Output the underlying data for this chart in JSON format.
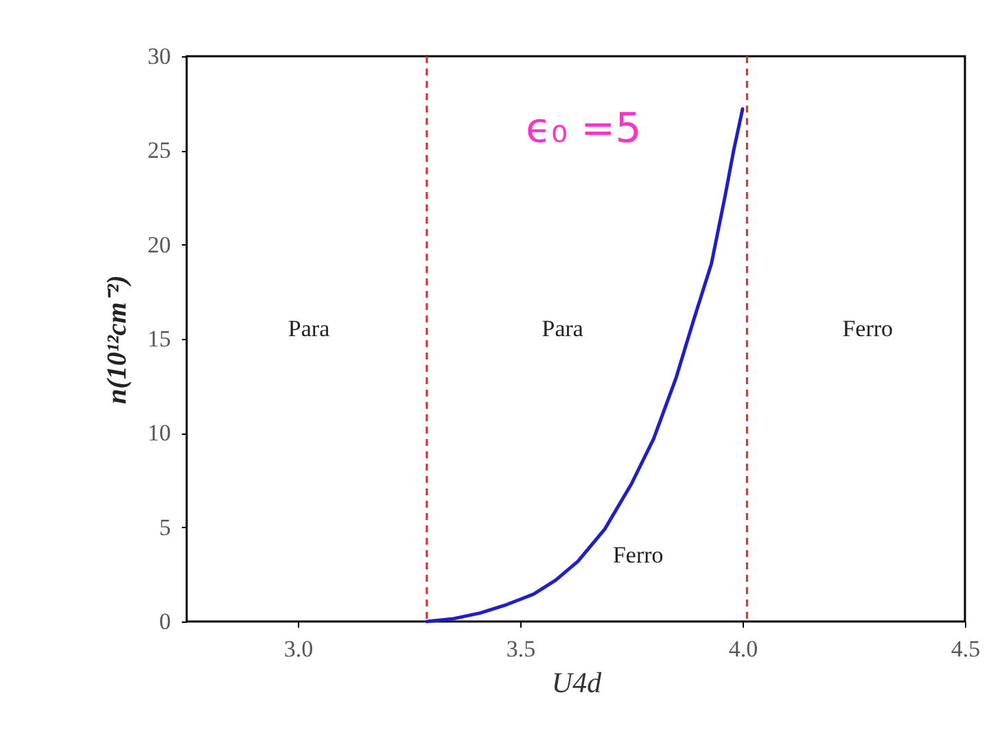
{
  "chart_data": {
    "type": "line",
    "xlabel": "U4d",
    "ylabel": "n(10¹²cm⁻²)",
    "x": [
      3.29,
      3.35,
      3.41,
      3.47,
      3.53,
      3.58,
      3.63,
      3.69,
      3.75,
      3.8,
      3.85,
      3.89,
      3.93,
      3.96,
      3.98,
      4.0
    ],
    "series": [
      {
        "color": "#1f1fc8",
        "line_style": "solid",
        "values": [
          0,
          0.15,
          0.45,
          0.9,
          1.45,
          2.2,
          3.2,
          4.9,
          7.3,
          9.7,
          12.9,
          16.0,
          19.0,
          22.5,
          25.0,
          27.2
        ]
      }
    ],
    "xlim": [
      2.75,
      4.5
    ],
    "ylim": [
      0,
      30
    ],
    "xticks": [
      {
        "value": 3,
        "label": "3.0"
      },
      3.5,
      {
        "value": 4,
        "label": "4.0"
      },
      4.5
    ],
    "yticks": [
      0,
      5,
      10,
      15,
      20,
      25,
      30
    ],
    "ref_lines": [
      {
        "axis": "x",
        "value": 3.29,
        "color": "#e8302a",
        "line_style": "dashed"
      },
      {
        "axis": "x",
        "value": 4.01,
        "color": "#e8302a",
        "line_style": "dashed"
      }
    ],
    "annotations": [
      "ϵ₀ =5",
      "Para",
      "Para",
      "Ferro",
      "Ferro"
    ]
  }
}
